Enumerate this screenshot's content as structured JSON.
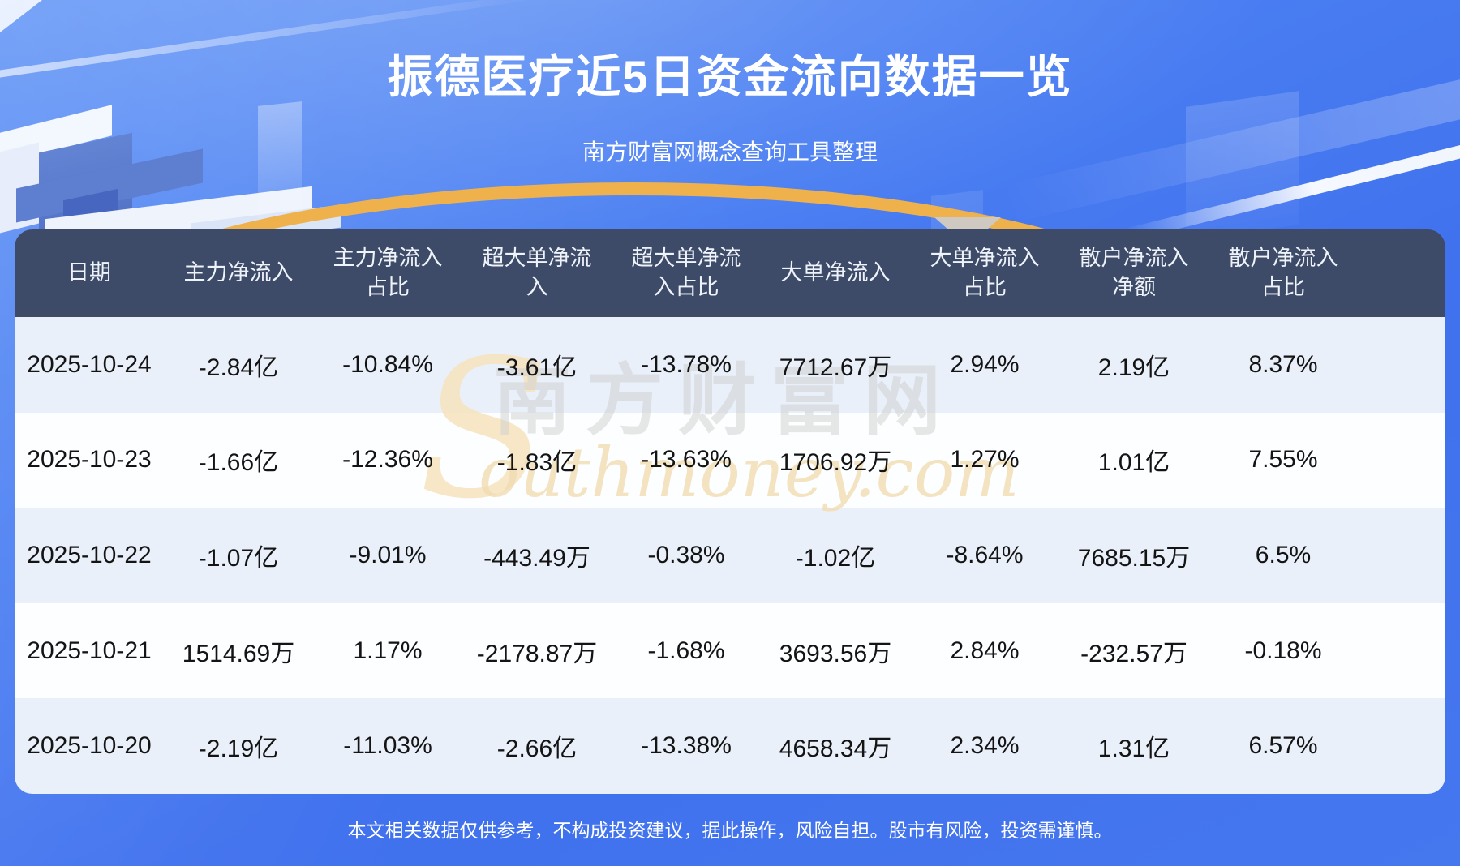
{
  "page": {
    "title": "振德医疗近5日资金流向数据一览",
    "subtitle": "南方财富网概念查询工具整理",
    "disclaimer": "本文相关数据仅供参考，不构成投资建议，据此操作，风险自担。股市有风险，投资需谨慎。"
  },
  "watermark": {
    "s": "S",
    "cn": "南方财富网",
    "en": "outhmoney.com"
  },
  "colors": {
    "background_blue": "#4478f0",
    "header_bg": "#3d4b68",
    "row_alt_bg": "#e9f0fa",
    "row_bg": "#ffffff",
    "gold_arc": "#efb14c",
    "text_dark": "#141414",
    "text_light": "#ffffff"
  },
  "table": {
    "headers_display": [
      "日期",
      "主力净流入",
      "主力净流入\n占比",
      "超大单净流\n入",
      "超大单净流\n入占比",
      "大单净流入",
      "大单净流入\n占比",
      "散户净流入\n净额",
      "散户净流入\n占比"
    ]
  },
  "chart_data": {
    "type": "table",
    "title": "振德医疗近5日资金流向数据一览",
    "columns": [
      "日期",
      "主力净流入",
      "主力净流入占比",
      "超大单净流入",
      "超大单净流入占比",
      "大单净流入",
      "大单净流入占比",
      "散户净流入净额",
      "散户净流入占比"
    ],
    "rows": [
      [
        "2025-10-24",
        "-2.84亿",
        "-10.84%",
        "-3.61亿",
        "-13.78%",
        "7712.67万",
        "2.94%",
        "2.19亿",
        "8.37%"
      ],
      [
        "2025-10-23",
        "-1.66亿",
        "-12.36%",
        "-1.83亿",
        "-13.63%",
        "1706.92万",
        "1.27%",
        "1.01亿",
        "7.55%"
      ],
      [
        "2025-10-22",
        "-1.07亿",
        "-9.01%",
        "-443.49万",
        "-0.38%",
        "-1.02亿",
        "-8.64%",
        "7685.15万",
        "6.5%"
      ],
      [
        "2025-10-21",
        "1514.69万",
        "1.17%",
        "-2178.87万",
        "-1.68%",
        "3693.56万",
        "2.84%",
        "-232.57万",
        "-0.18%"
      ],
      [
        "2025-10-20",
        "-2.19亿",
        "-11.03%",
        "-2.66亿",
        "-13.38%",
        "4658.34万",
        "2.34%",
        "1.31亿",
        "6.57%"
      ]
    ]
  }
}
